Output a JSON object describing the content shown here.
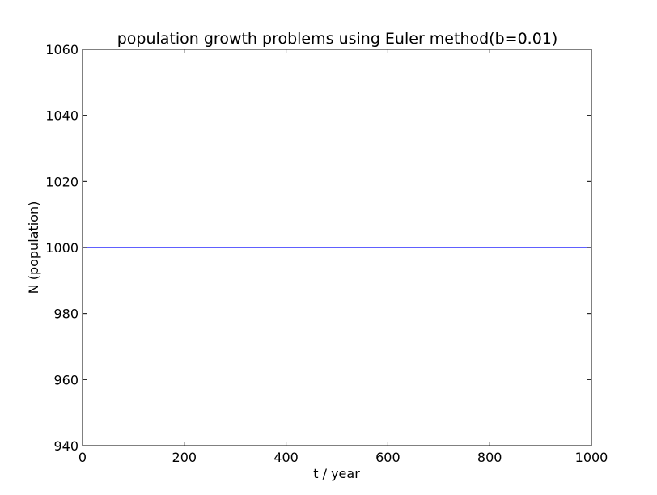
{
  "chart_data": {
    "type": "line",
    "title": "population growth problems using Euler method(b=0.01)",
    "xlabel": "t / year",
    "ylabel": "N (population)",
    "xlim": [
      0,
      1000
    ],
    "ylim": [
      940,
      1060
    ],
    "xticks": [
      0,
      200,
      400,
      600,
      800,
      1000
    ],
    "yticks": [
      940,
      960,
      980,
      1000,
      1020,
      1040,
      1060
    ],
    "grid": false,
    "series": [
      {
        "color": "#0000ff",
        "x": [
          0,
          1000
        ],
        "y": [
          1000,
          1000
        ]
      }
    ]
  }
}
